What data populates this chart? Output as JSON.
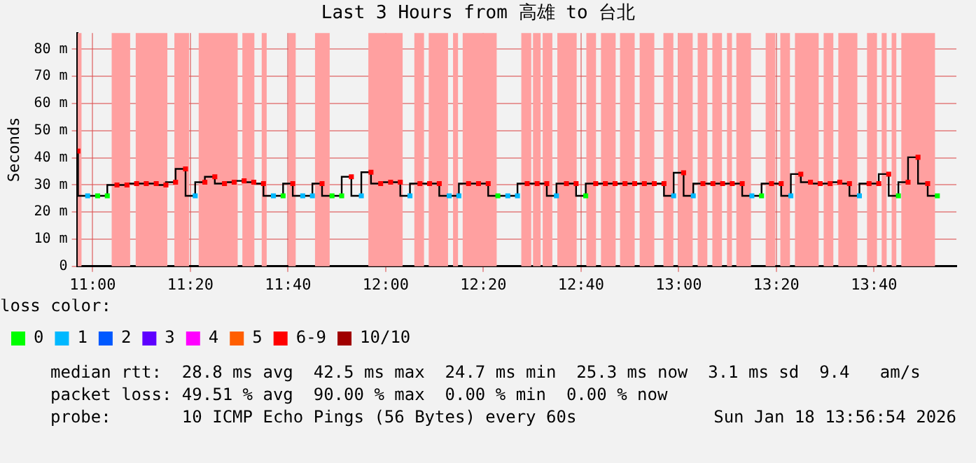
{
  "chart_data": {
    "type": "step",
    "title": "Last 3 Hours from 高雄 to 台北",
    "ylabel": "Seconds",
    "xlim": [
      10.948,
      13.948
    ],
    "xticks": [
      {
        "value": 11,
        "label": "11:00"
      },
      {
        "value": 11.3333,
        "label": "11:20"
      },
      {
        "value": 11.6667,
        "label": "11:40"
      },
      {
        "value": 12,
        "label": "12:00"
      },
      {
        "value": 12.3333,
        "label": "12:20"
      },
      {
        "value": 12.6667,
        "label": "12:40"
      },
      {
        "value": 13,
        "label": "13:00"
      },
      {
        "value": 13.3333,
        "label": "13:20"
      },
      {
        "value": 13.6667,
        "label": "13:40"
      }
    ],
    "ylim": [
      0,
      86
    ],
    "yticks": [
      0,
      {
        "value": 10,
        "label": "10 m"
      },
      {
        "value": 20,
        "label": "20 m"
      },
      {
        "value": 30,
        "label": "30 m"
      },
      {
        "value": 40,
        "label": "40 m"
      },
      {
        "value": 50,
        "label": "50 m"
      },
      {
        "value": 60,
        "label": "60 m"
      },
      {
        "value": 70,
        "label": "70 m"
      },
      {
        "value": 80,
        "label": "80 m"
      }
    ],
    "grid": true,
    "legend": "bottom",
    "legend_title": "loss color:",
    "bands": [
      {
        "axis": "x",
        "from": 10.949,
        "to": 10.962,
        "color": "#ffa0a0"
      },
      {
        "axis": "x",
        "from": 11.065,
        "to": 11.128,
        "color": "#ffa0a0"
      },
      {
        "axis": "x",
        "from": 11.147,
        "to": 11.255,
        "color": "#ffa0a0"
      },
      {
        "axis": "x",
        "from": 11.279,
        "to": 11.329,
        "color": "#ffa0a0"
      },
      {
        "axis": "x",
        "from": 11.362,
        "to": 11.495,
        "color": "#ffa0a0"
      },
      {
        "axis": "x",
        "from": 11.511,
        "to": 11.552,
        "color": "#ffa0a0"
      },
      {
        "axis": "x",
        "from": 11.577,
        "to": 11.594,
        "color": "#ffa0a0"
      },
      {
        "axis": "x",
        "from": 11.668,
        "to": 11.693,
        "color": "#ffa0a0"
      },
      {
        "axis": "x",
        "from": 11.759,
        "to": 11.809,
        "color": "#ffa0a0"
      },
      {
        "axis": "x",
        "from": 11.941,
        "to": 12.058,
        "color": "#ffa0a0"
      },
      {
        "axis": "x",
        "from": 12.098,
        "to": 12.131,
        "color": "#ffa0a0"
      },
      {
        "axis": "x",
        "from": 12.147,
        "to": 12.213,
        "color": "#ffa0a0"
      },
      {
        "axis": "x",
        "from": 12.23,
        "to": 12.247,
        "color": "#ffa0a0"
      },
      {
        "axis": "x",
        "from": 12.263,
        "to": 12.379,
        "color": "#ffa0a0"
      },
      {
        "axis": "x",
        "from": 12.463,
        "to": 12.497,
        "color": "#ffa0a0"
      },
      {
        "axis": "x",
        "from": 12.503,
        "to": 12.529,
        "color": "#ffa0a0"
      },
      {
        "axis": "x",
        "from": 12.536,
        "to": 12.569,
        "color": "#ffa0a0"
      },
      {
        "axis": "x",
        "from": 12.586,
        "to": 12.652,
        "color": "#ffa0a0"
      },
      {
        "axis": "x",
        "from": 12.685,
        "to": 12.718,
        "color": "#ffa0a0"
      },
      {
        "axis": "x",
        "from": 12.735,
        "to": 12.785,
        "color": "#ffa0a0"
      },
      {
        "axis": "x",
        "from": 12.8,
        "to": 12.85,
        "color": "#ffa0a0"
      },
      {
        "axis": "x",
        "from": 12.867,
        "to": 12.917,
        "color": "#ffa0a0"
      },
      {
        "axis": "x",
        "from": 12.948,
        "to": 12.982,
        "color": "#ffa0a0"
      },
      {
        "axis": "x",
        "from": 12.998,
        "to": 13.048,
        "color": "#ffa0a0"
      },
      {
        "axis": "x",
        "from": 13.065,
        "to": 13.098,
        "color": "#ffa0a0"
      },
      {
        "axis": "x",
        "from": 13.115,
        "to": 13.148,
        "color": "#ffa0a0"
      },
      {
        "axis": "x",
        "from": 13.165,
        "to": 13.182,
        "color": "#ffa0a0"
      },
      {
        "axis": "x",
        "from": 13.197,
        "to": 13.247,
        "color": "#ffa0a0"
      },
      {
        "axis": "x",
        "from": 13.297,
        "to": 13.33,
        "color": "#ffa0a0"
      },
      {
        "axis": "x",
        "from": 13.347,
        "to": 13.38,
        "color": "#ffa0a0"
      },
      {
        "axis": "x",
        "from": 13.397,
        "to": 13.478,
        "color": "#ffa0a0"
      },
      {
        "axis": "x",
        "from": 13.495,
        "to": 13.528,
        "color": "#ffa0a0"
      },
      {
        "axis": "x",
        "from": 13.545,
        "to": 13.61,
        "color": "#ffa0a0"
      },
      {
        "axis": "x",
        "from": 13.643,
        "to": 13.677,
        "color": "#ffa0a0"
      },
      {
        "axis": "x",
        "from": 13.693,
        "to": 13.71,
        "color": "#ffa0a0"
      },
      {
        "axis": "x",
        "from": 13.727,
        "to": 13.743,
        "color": "#ffa0a0"
      },
      {
        "axis": "x",
        "from": 13.76,
        "to": 13.875,
        "color": "#ffa0a0"
      }
    ],
    "series": [
      {
        "color": "#000000",
        "x": [
          10.95,
          10.983,
          11.017,
          11.05,
          11.083,
          11.117,
          11.15,
          11.183,
          11.217,
          11.25,
          11.283,
          11.317,
          11.35,
          11.383,
          11.417,
          11.45,
          11.483,
          11.517,
          11.55,
          11.583,
          11.617,
          11.65,
          11.683,
          11.717,
          11.75,
          11.783,
          11.817,
          11.85,
          11.883,
          11.917,
          11.95,
          11.983,
          12.017,
          12.05,
          12.083,
          12.117,
          12.15,
          12.183,
          12.217,
          12.25,
          12.283,
          12.317,
          12.35,
          12.383,
          12.417,
          12.45,
          12.483,
          12.517,
          12.55,
          12.583,
          12.617,
          12.65,
          12.683,
          12.717,
          12.75,
          12.783,
          12.817,
          12.85,
          12.883,
          12.917,
          12.95,
          12.983,
          13.017,
          13.05,
          13.083,
          13.117,
          13.15,
          13.183,
          13.217,
          13.25,
          13.283,
          13.317,
          13.35,
          13.383,
          13.417,
          13.45,
          13.483,
          13.517,
          13.55,
          13.583,
          13.617,
          13.65,
          13.683,
          13.717,
          13.75,
          13.783,
          13.817,
          13.85,
          13.883
        ],
        "values": [
          42.5,
          26,
          26,
          26,
          30,
          30,
          30.5,
          30.5,
          30.5,
          30,
          31,
          35.9,
          26,
          31,
          33,
          30.5,
          31,
          31.5,
          31,
          30.5,
          26,
          26,
          30.5,
          26,
          26,
          30.5,
          26,
          26,
          33,
          26,
          34.7,
          30.5,
          31,
          31,
          26,
          30.5,
          30.5,
          30.5,
          26,
          26,
          30.5,
          30.5,
          30.5,
          26,
          26,
          26,
          30.5,
          30.5,
          30.5,
          26,
          30.5,
          30.5,
          26,
          30.5,
          30.5,
          30.5,
          30.5,
          30.5,
          30.5,
          30.5,
          30.5,
          26,
          34.5,
          26,
          30.5,
          30.5,
          30.5,
          30.5,
          30.5,
          26,
          26,
          30.5,
          30.5,
          26,
          34,
          31,
          30.5,
          30.5,
          31,
          30.5,
          26,
          30.5,
          30.5,
          34,
          26,
          31,
          40.2,
          30.5,
          26
        ]
      },
      {
        "type": "scatter",
        "marker": "square",
        "name": "0",
        "color": "#00ff00",
        "x": [
          11.017,
          11.05,
          11.65,
          11.817,
          11.85,
          12.383,
          12.683,
          13.283,
          13.75,
          13.883
        ],
        "values": [
          26,
          26,
          26,
          26,
          26,
          26,
          26,
          26,
          26,
          26
        ]
      },
      {
        "type": "scatter",
        "marker": "square",
        "name": "1",
        "color": "#00b8ff",
        "x": [
          10.983,
          11.35,
          11.617,
          11.717,
          11.75,
          11.917,
          12.083,
          12.217,
          12.25,
          12.417,
          12.45,
          12.583,
          12.983,
          13.05,
          13.25,
          13.383,
          13.617
        ],
        "values": [
          26,
          26,
          26,
          26,
          26,
          26,
          26,
          26,
          26,
          26,
          26,
          26,
          26,
          26,
          26,
          26,
          26
        ]
      },
      {
        "type": "scatter",
        "marker": "square",
        "name": "2",
        "color": "#0059ff"
      },
      {
        "type": "scatter",
        "marker": "square",
        "name": "3",
        "color": "#5e00ff"
      },
      {
        "type": "scatter",
        "marker": "square",
        "name": "4",
        "color": "#ff00ff"
      },
      {
        "type": "scatter",
        "marker": "square",
        "name": "5",
        "color": "#ff5e00"
      },
      {
        "type": "scatter",
        "marker": "square",
        "name": "6-9",
        "color": "#ff0000",
        "x": [
          10.95,
          11.083,
          11.117,
          11.15,
          11.183,
          11.217,
          11.25,
          11.283,
          11.317,
          11.383,
          11.417,
          11.45,
          11.483,
          11.517,
          11.55,
          11.583,
          11.683,
          11.783,
          11.883,
          11.95,
          11.983,
          12.017,
          12.05,
          12.117,
          12.15,
          12.183,
          12.283,
          12.317,
          12.35,
          12.483,
          12.517,
          12.55,
          12.617,
          12.65,
          12.717,
          12.75,
          12.783,
          12.817,
          12.85,
          12.883,
          12.917,
          12.95,
          13.017,
          13.083,
          13.117,
          13.15,
          13.183,
          13.217,
          13.317,
          13.35,
          13.417,
          13.45,
          13.483,
          13.517,
          13.55,
          13.583,
          13.65,
          13.683,
          13.717,
          13.783,
          13.817,
          13.85
        ],
        "values": [
          42.5,
          30,
          30,
          30.5,
          30.5,
          30.5,
          30,
          31,
          35.9,
          31,
          33,
          30.5,
          31,
          31.5,
          31,
          30.5,
          30.5,
          30.5,
          33,
          34.7,
          30.5,
          31,
          31,
          30.5,
          30.5,
          30.5,
          30.5,
          30.5,
          30.5,
          30.5,
          30.5,
          30.5,
          30.5,
          30.5,
          30.5,
          30.5,
          30.5,
          30.5,
          30.5,
          30.5,
          30.5,
          30.5,
          34.5,
          30.5,
          30.5,
          30.5,
          30.5,
          30.5,
          30.5,
          30.5,
          34,
          31,
          30.5,
          30.5,
          31,
          30.5,
          30.5,
          30.5,
          34,
          31,
          40.2,
          30.5
        ]
      },
      {
        "type": "scatter",
        "marker": "square",
        "name": "10/10",
        "color": "#a00000"
      }
    ],
    "annotations": [
      "median rtt:  28.8 ms avg  42.5 ms max  24.7 ms min  25.3 ms now  3.1 ms sd  9.4   am/s",
      "packet loss: 49.51 % avg  90.00 % max  0.00 % min  0.00 % now",
      "probe:       10 ICMP Echo Pings (56 Bytes) every 60s",
      "Sun Jan 18 13:56:54 2026"
    ]
  }
}
